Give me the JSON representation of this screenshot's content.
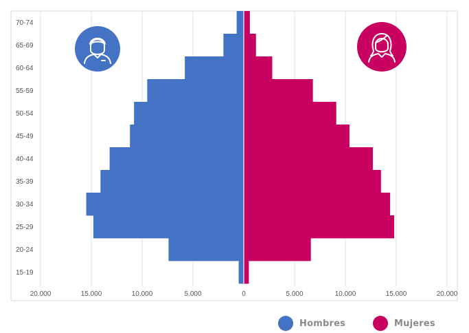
{
  "chart_data": {
    "type": "bar",
    "categories": [
      "70-74",
      "65-69",
      "60-64",
      "55-59",
      "50-54",
      "45-49",
      "40-44",
      "35-39",
      "30-34",
      "25-29",
      "20-24",
      "15-19"
    ],
    "series": [
      {
        "name": "Hombres",
        "color": "#4472C4",
        "values": [
          700,
          2000,
          5800,
          9500,
          10800,
          11200,
          13200,
          14100,
          15500,
          14800,
          7400,
          500
        ]
      },
      {
        "name": "Mujeres",
        "color": "#C8005F",
        "values": [
          600,
          1200,
          2800,
          6800,
          9100,
          10400,
          12700,
          13500,
          14400,
          14800,
          6600,
          500
        ]
      }
    ],
    "x_ticks": [
      "20.000",
      "15.000",
      "10.000",
      "5.000",
      "0",
      "5.000",
      "10.000",
      "15.000",
      "20.000"
    ],
    "xlim": [
      -20000,
      20000
    ],
    "grid": true,
    "orientation": "horizontal",
    "legend_position": "bottom-right"
  },
  "icons": {
    "male": {
      "name": "man-avatar-icon",
      "color": "#4472C4"
    },
    "female": {
      "name": "woman-avatar-icon",
      "color": "#C8005F"
    }
  },
  "legend": [
    {
      "label": "Hombres",
      "color": "#4472C4"
    },
    {
      "label": "Mujeres",
      "color": "#C8005F"
    }
  ]
}
